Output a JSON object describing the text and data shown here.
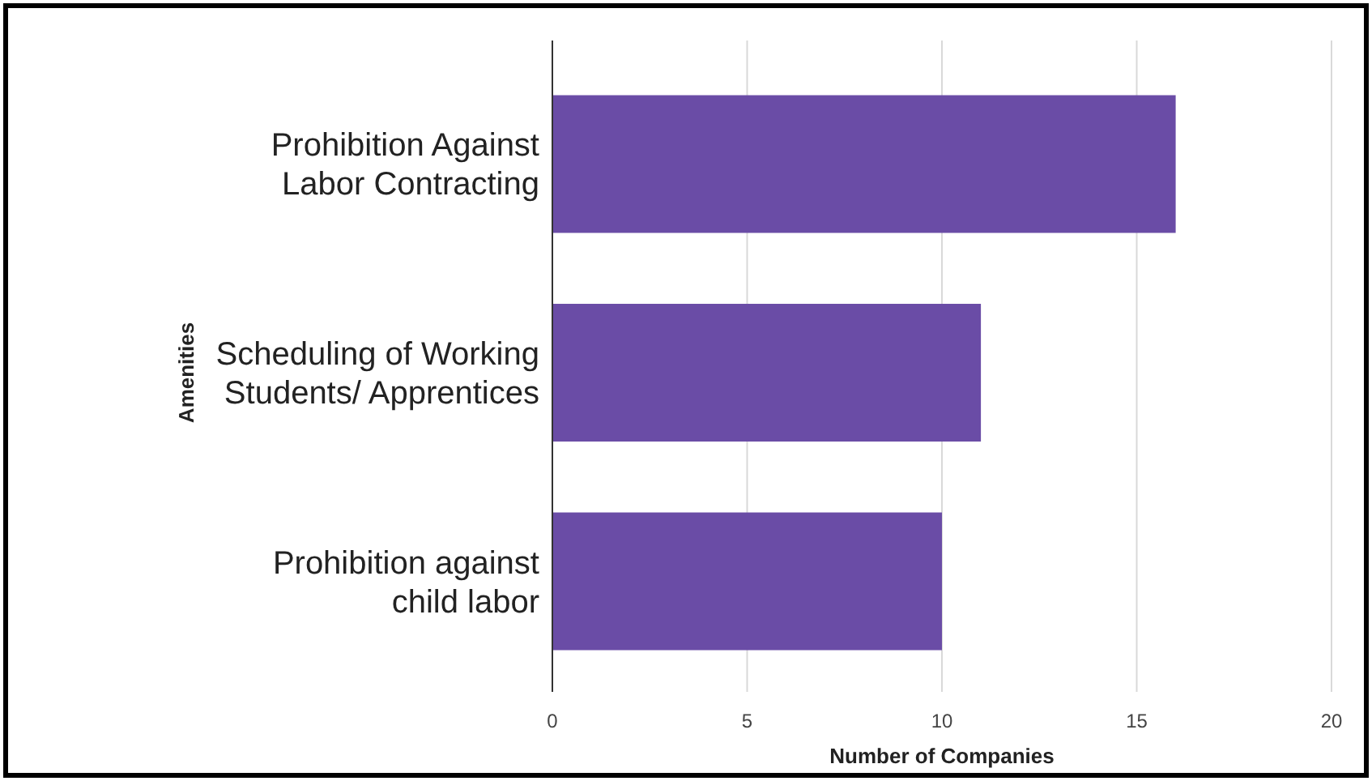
{
  "chart_data": {
    "type": "bar",
    "orientation": "horizontal",
    "xlabel": "Number of Companies",
    "ylabel": "Amenities",
    "categories": [
      "Prohibition Against Labor Contracting",
      "Scheduling of Working Students/ Apprentices",
      "Prohibition against child labor"
    ],
    "values": [
      16,
      11,
      10
    ],
    "color": "#6a4ca6",
    "xlim": [
      0,
      20
    ],
    "xticks": [
      0,
      5,
      10,
      15,
      20
    ],
    "grid": "x"
  }
}
